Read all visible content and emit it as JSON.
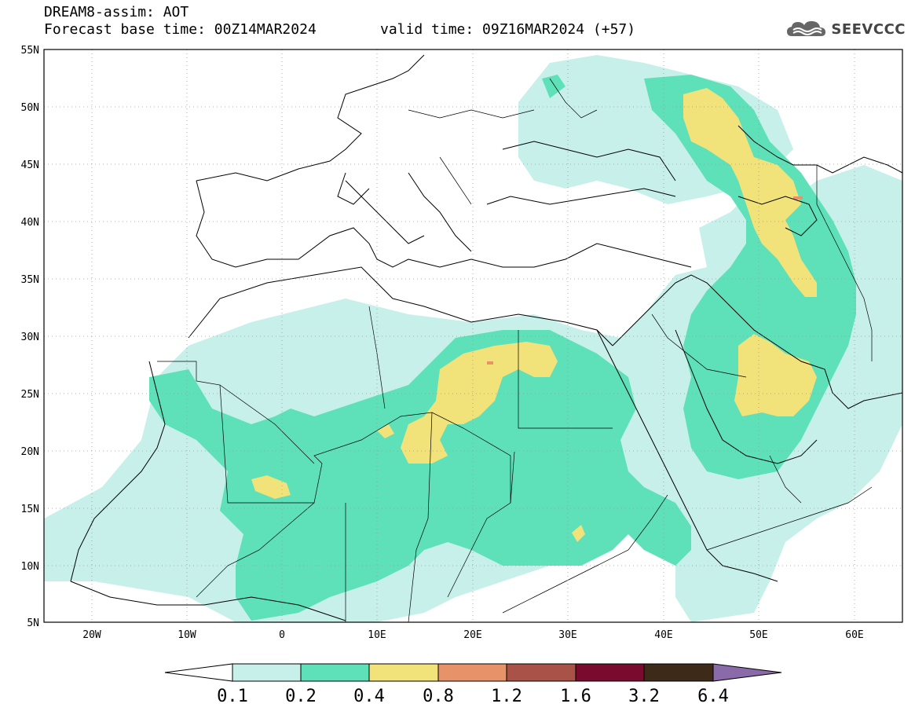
{
  "header": {
    "title_line1": "DREAM8-assim: AOT",
    "title_line2": "Forecast base time: 00Z14MAR2024",
    "valid_time": "valid time: 09Z16MAR2024 (+57)",
    "logo_text": "SEEVCCC",
    "logo_icon": "cloud-icon"
  },
  "map": {
    "lat_labels": [
      "55N",
      "50N",
      "45N",
      "40N",
      "35N",
      "30N",
      "25N",
      "20N",
      "15N",
      "10N",
      "5N"
    ],
    "lon_labels": [
      "20W",
      "10W",
      "0",
      "10E",
      "20E",
      "30E",
      "40E",
      "50E",
      "60E"
    ],
    "lat_range": [
      5,
      55
    ],
    "lon_range": [
      -25,
      65
    ],
    "gridlines": true
  },
  "colorbar": {
    "labels": [
      "0.1",
      "0.2",
      "0.4",
      "0.8",
      "1.2",
      "1.6",
      "3.2",
      "6.4"
    ],
    "colors": [
      "#ffffff",
      "#c8f0ea",
      "#5ee0b8",
      "#f2e27a",
      "#e8926a",
      "#a85248",
      "#7a0a2e",
      "#3e2a18",
      "#8a6aa8"
    ]
  }
}
